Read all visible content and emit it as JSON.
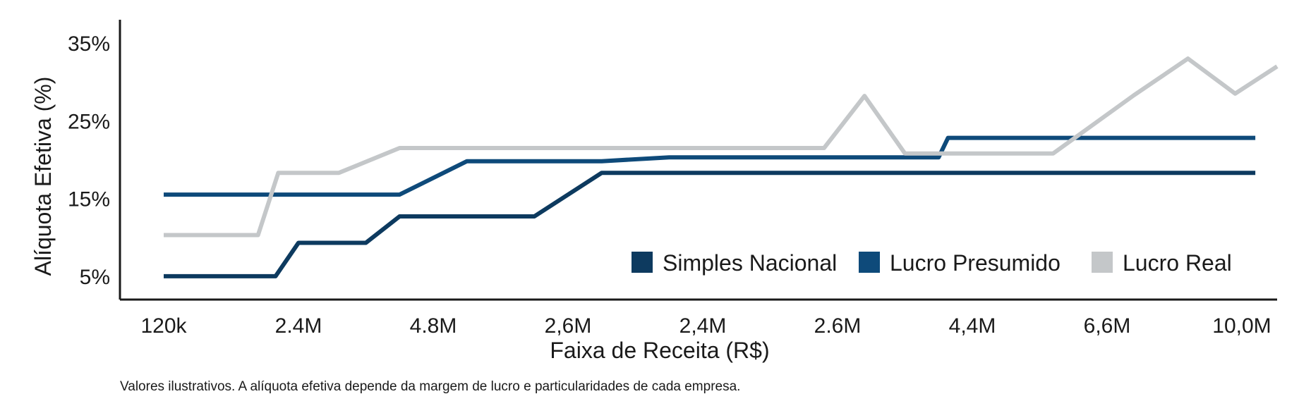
{
  "chart_data": {
    "type": "line",
    "x_tick_labels": [
      "120k",
      "2.4M",
      "4.8M",
      "2,6M",
      "2,4M",
      "2.6M",
      "4,4M",
      "6,6M",
      "10,0M"
    ],
    "xlabel": "Faixa de Receita (R$)",
    "ylabel": "Alíquota Efetiva (%)",
    "y_ticks": [
      5,
      15,
      25,
      35
    ],
    "y_tick_labels": [
      "5%",
      "15%",
      "25%",
      "35%"
    ],
    "ylim": [
      2,
      38
    ],
    "xlim": [
      -0.3,
      8.2
    ],
    "grid": false,
    "legend_position": "bottom-right",
    "series": [
      {
        "name": "Simples Nacional",
        "color": "#0d3a5f",
        "points": [
          [
            0,
            5
          ],
          [
            0.83,
            5
          ],
          [
            1,
            9.3
          ],
          [
            1.5,
            9.3
          ],
          [
            1.75,
            12.7
          ],
          [
            2.75,
            12.7
          ],
          [
            3.25,
            18.3
          ],
          [
            8.1,
            18.3
          ]
        ]
      },
      {
        "name": "Lucro Presumido",
        "color": "#0e4a7a",
        "points": [
          [
            0,
            15.5
          ],
          [
            1.75,
            15.5
          ],
          [
            2.25,
            19.8
          ],
          [
            3.25,
            19.8
          ],
          [
            3.75,
            20.3
          ],
          [
            5.75,
            20.3
          ],
          [
            5.82,
            22.8
          ],
          [
            8.1,
            22.8
          ]
        ]
      },
      {
        "name": "Lucro Real",
        "color": "#c4c7c9",
        "points": [
          [
            0,
            10.3
          ],
          [
            0.7,
            10.3
          ],
          [
            0.85,
            18.3
          ],
          [
            1.3,
            18.3
          ],
          [
            1.75,
            21.5
          ],
          [
            4.9,
            21.5
          ],
          [
            5.2,
            28.2
          ],
          [
            5.5,
            20.8
          ],
          [
            6.6,
            20.8
          ],
          [
            7.2,
            28.3
          ],
          [
            7.6,
            33
          ],
          [
            7.95,
            28.5
          ],
          [
            8.5,
            32
          ]
        ]
      }
    ],
    "footnote": "Valores ilustrativos. A alíquota efetiva depende da margem de lucro e particularidades de cada empresa."
  }
}
